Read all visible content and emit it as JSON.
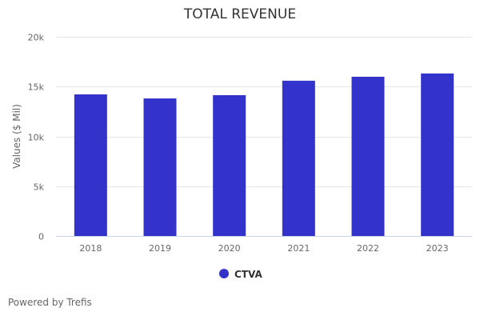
{
  "chart_data": {
    "type": "bar",
    "title": "TOTAL REVENUE",
    "xlabel": "",
    "ylabel": "Values ($ Mil)",
    "categories": [
      "2018",
      "2019",
      "2020",
      "2021",
      "2022",
      "2023"
    ],
    "series": [
      {
        "name": "CTVA",
        "color": "#3333cc",
        "values": [
          14220,
          13810,
          14140,
          15590,
          15990,
          16320
        ]
      }
    ],
    "ylim": [
      0,
      20000
    ],
    "yticks": [
      0,
      5000,
      10000,
      15000,
      20000
    ],
    "ytick_labels": [
      "0",
      "5k",
      "10k",
      "15k",
      "20k"
    ],
    "grid": true,
    "legend": "bottom-center"
  },
  "credit": "Powered by Trefis"
}
